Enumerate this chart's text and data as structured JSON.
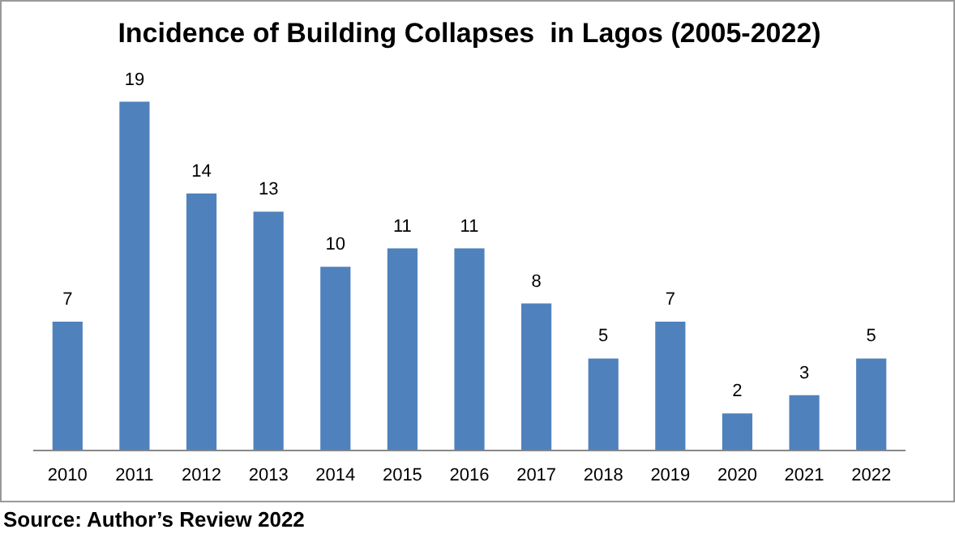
{
  "chart_data": {
    "type": "bar",
    "title": "Incidence of Building Collapses  in Lagos (2005-2022)",
    "categories": [
      "2010",
      "2011",
      "2012",
      "2013",
      "2014",
      "2015",
      "2016",
      "2017",
      "2018",
      "2019",
      "2020",
      "2021",
      "2022"
    ],
    "values": [
      7,
      19,
      14,
      13,
      10,
      11,
      11,
      8,
      5,
      7,
      2,
      3,
      5
    ],
    "color": "#4f81bd",
    "data_labels": true,
    "tick_labels": "x",
    "grid": false,
    "legend": false,
    "annotations": [
      "Source: Author’s Review 2022"
    ]
  }
}
